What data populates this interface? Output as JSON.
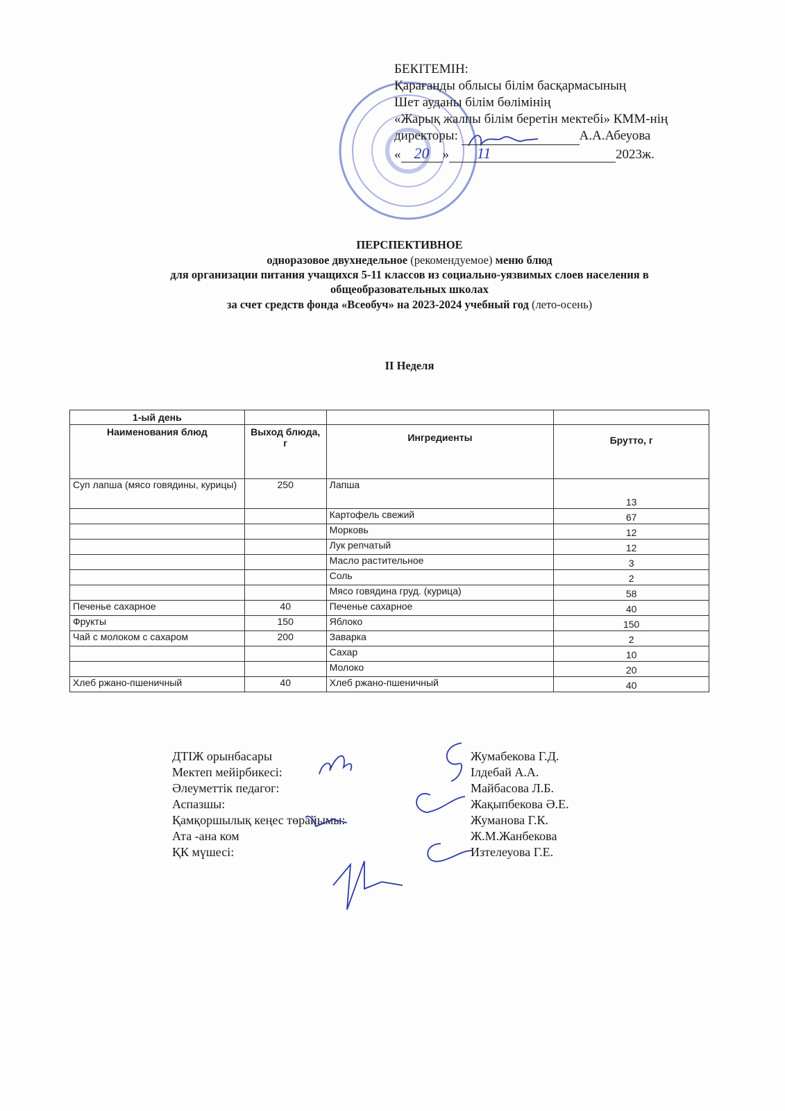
{
  "approval": {
    "heading": "БЕКІТЕМІН:",
    "lines": [
      "Қарағанды облысы білім басқармасының",
      "Шет ауданы білім бөлімінің",
      "«Жарық жалпы білім беретін мектебі» КММ-нің"
    ],
    "director_label": "директоры:",
    "director_name": "А.А.Абеуова",
    "date_open": "«",
    "date_day": "20",
    "date_close": "»",
    "date_month": "11",
    "date_year": "2023ж."
  },
  "title": {
    "line1": "ПЕРСПЕКТИВНОЕ",
    "line2_a": "одноразовое двухнедельное",
    "line2_b": "(рекомендуемое)",
    "line2_c": "меню блюд",
    "line3": "для организации питания учащихся 5-11 классов из социально-уязвимых слоев населения в",
    "line4": "общеобразовательных школах",
    "line5_a": "за счет средств фонда «Всеобуч» на 2023-2024 учебный год",
    "line5_b": "(лето-осень)",
    "week": "II Неделя"
  },
  "table": {
    "day": "1-ый день",
    "headers": [
      "Наименования блюд",
      "Выход блюда, г",
      "Ингредиенты",
      "Брутто, г"
    ],
    "rows": [
      [
        "Суп лапша (мясо говядины, курицы)",
        "250",
        "Лапша",
        "13"
      ],
      [
        "",
        "",
        "Картофель свежий",
        "67"
      ],
      [
        "",
        "",
        "Морковь",
        "12"
      ],
      [
        "",
        "",
        "Лук репчатый",
        "12"
      ],
      [
        "",
        "",
        "Масло растительное",
        "3"
      ],
      [
        "",
        "",
        "Соль",
        "2"
      ],
      [
        "",
        "",
        "Мясо говядина груд. (курица)",
        "58"
      ],
      [
        "Печенье сахарное",
        "40",
        "Печенье сахарное",
        "40"
      ],
      [
        "Фрукты",
        "150",
        "Яблоко",
        "150"
      ],
      [
        "Чай с молоком с сахаром",
        "200",
        "Заварка",
        "2"
      ],
      [
        "",
        "",
        "Сахар",
        "10"
      ],
      [
        "",
        "",
        "Молоко",
        "20"
      ],
      [
        "Хлеб ржано-пшеничный",
        "40",
        "Хлеб ржано-пшеничный",
        "40"
      ]
    ]
  },
  "signatures": {
    "roles": [
      "ДТІЖ орынбасары",
      "Мектеп мейірбикесі:",
      "Әлеуметтік педагог:",
      "Аспазшы:",
      "Қамқоршылық кеңес төрайымы:",
      "Ата -ана ком",
      "ҚК мүшесі:"
    ],
    "names": [
      "Жумабекова Г.Д.",
      "Ілдебай А.А.",
      "Майбасова Л.Б.",
      "Жақыпбекова Ә.Е.",
      "Жуманова Г.К.",
      "Ж.М.Жанбекова",
      "Изтелеуова Г.Е."
    ]
  },
  "stamp_color": "#3b4fb0",
  "ink_color": "#2b3aa8"
}
